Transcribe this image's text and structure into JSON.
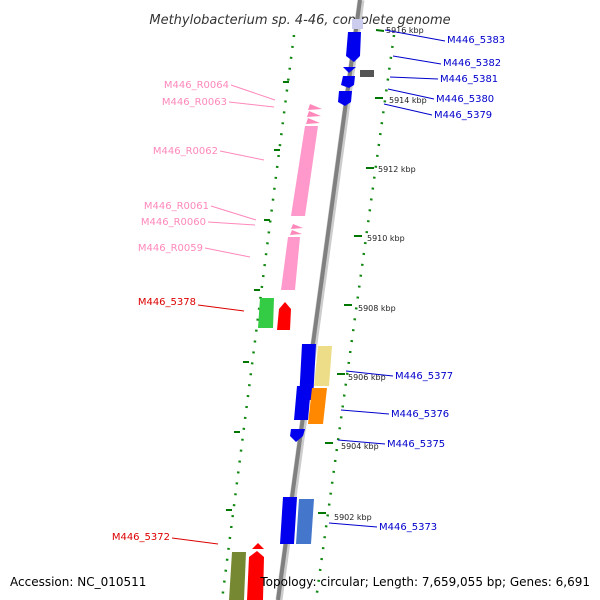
{
  "title": "Methylobacterium sp. 4-46, complete genome",
  "accession": "Accession: NC_010511",
  "topology": "Topology: circular; Length: 7,659,055 bp; Genes: 6,691",
  "colors": {
    "backbone": "#808080",
    "tick": "#007700",
    "rna_label": "#ff88bb",
    "forward_label": "#0000cc",
    "reverse_label": "#dd0000",
    "title": "#333333"
  },
  "ticks": [
    "5916 kbp",
    "5914 kbp",
    "5912 kbp",
    "5910 kbp",
    "5908 kbp",
    "5906 kbp",
    "5904 kbp",
    "5902 kbp"
  ],
  "rna_labels": [
    "M446_R0064",
    "M446_R0063",
    "M446_R0062",
    "M446_R0061",
    "M446_R0060",
    "M446_R0059"
  ],
  "reverse_labels": [
    "M446_5378",
    "M446_5372"
  ],
  "forward_labels": [
    "M446_5383",
    "M446_5382",
    "M446_5381",
    "M446_5380",
    "M446_5379",
    "M446_5377",
    "M446_5376",
    "M446_5375",
    "M446_5373"
  ]
}
